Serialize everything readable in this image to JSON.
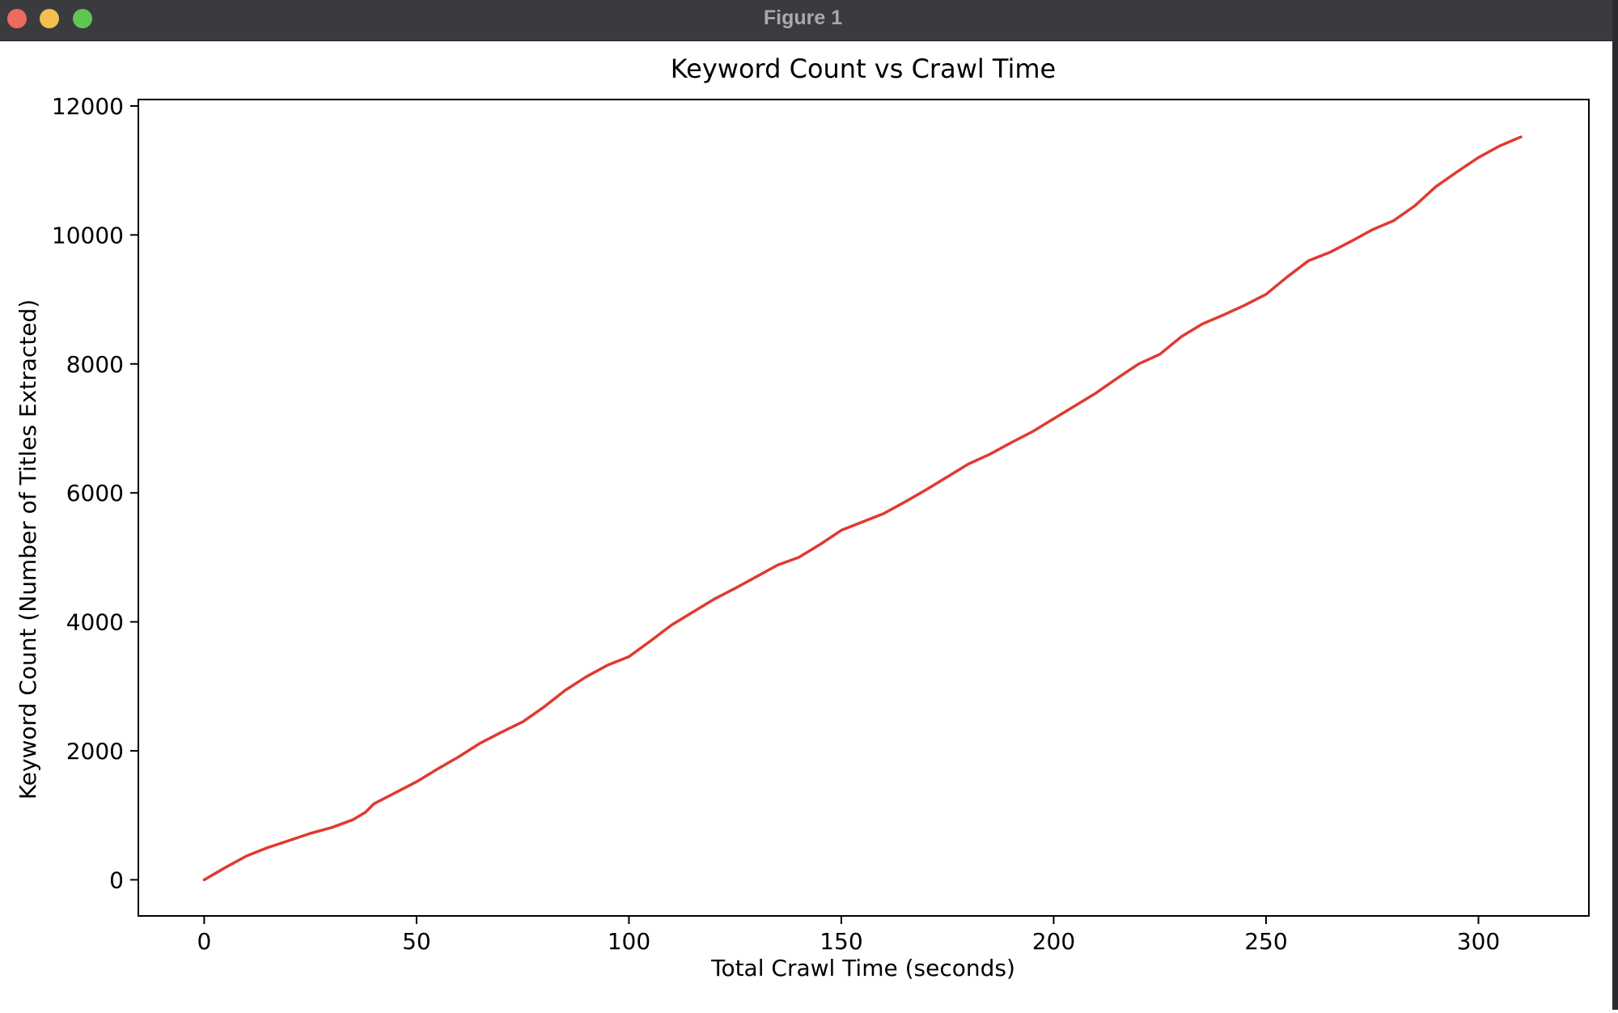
{
  "window": {
    "title": "Figure 1",
    "controls": [
      "close",
      "minimize",
      "zoom"
    ]
  },
  "colors": {
    "titlebar": "#3a3b3f",
    "close": "#ed6a5e",
    "minimize": "#f5bf4f",
    "zoom": "#61c554",
    "line": "#e03a2f"
  },
  "chart_data": {
    "type": "line",
    "title": "Keyword Count vs Crawl Time",
    "xlabel": "Total Crawl Time (seconds)",
    "ylabel": "Keyword Count (Number of Titles Extracted)",
    "xlim": [
      -15.5,
      326
    ],
    "ylim": [
      -560,
      12100
    ],
    "xticks": [
      0,
      50,
      100,
      150,
      200,
      250,
      300
    ],
    "yticks": [
      0,
      2000,
      4000,
      6000,
      8000,
      10000,
      12000
    ],
    "grid": false,
    "legend": null,
    "series": [
      {
        "x": [
          0,
          5,
          10,
          15,
          20,
          25,
          30,
          35,
          38,
          40,
          45,
          50,
          55,
          60,
          65,
          70,
          75,
          80,
          85,
          90,
          95,
          100,
          105,
          110,
          115,
          120,
          125,
          130,
          135,
          140,
          145,
          150,
          155,
          160,
          165,
          170,
          175,
          180,
          185,
          190,
          195,
          200,
          205,
          210,
          215,
          220,
          225,
          230,
          235,
          240,
          245,
          250,
          255,
          260,
          265,
          270,
          275,
          280,
          285,
          290,
          295,
          300,
          305,
          310
        ],
        "y": [
          0,
          190,
          370,
          500,
          610,
          720,
          810,
          930,
          1050,
          1180,
          1350,
          1520,
          1720,
          1910,
          2120,
          2290,
          2450,
          2680,
          2940,
          3150,
          3330,
          3460,
          3700,
          3950,
          4150,
          4350,
          4520,
          4700,
          4880,
          5000,
          5200,
          5420,
          5550,
          5680,
          5860,
          6050,
          6250,
          6450,
          6600,
          6780,
          6950,
          7150,
          7350,
          7550,
          7780,
          8000,
          8150,
          8420,
          8620,
          8760,
          8910,
          9080,
          9350,
          9600,
          9730,
          9900,
          10080,
          10220,
          10450,
          10750,
          10980,
          11200,
          11380,
          11520
        ]
      }
    ]
  }
}
